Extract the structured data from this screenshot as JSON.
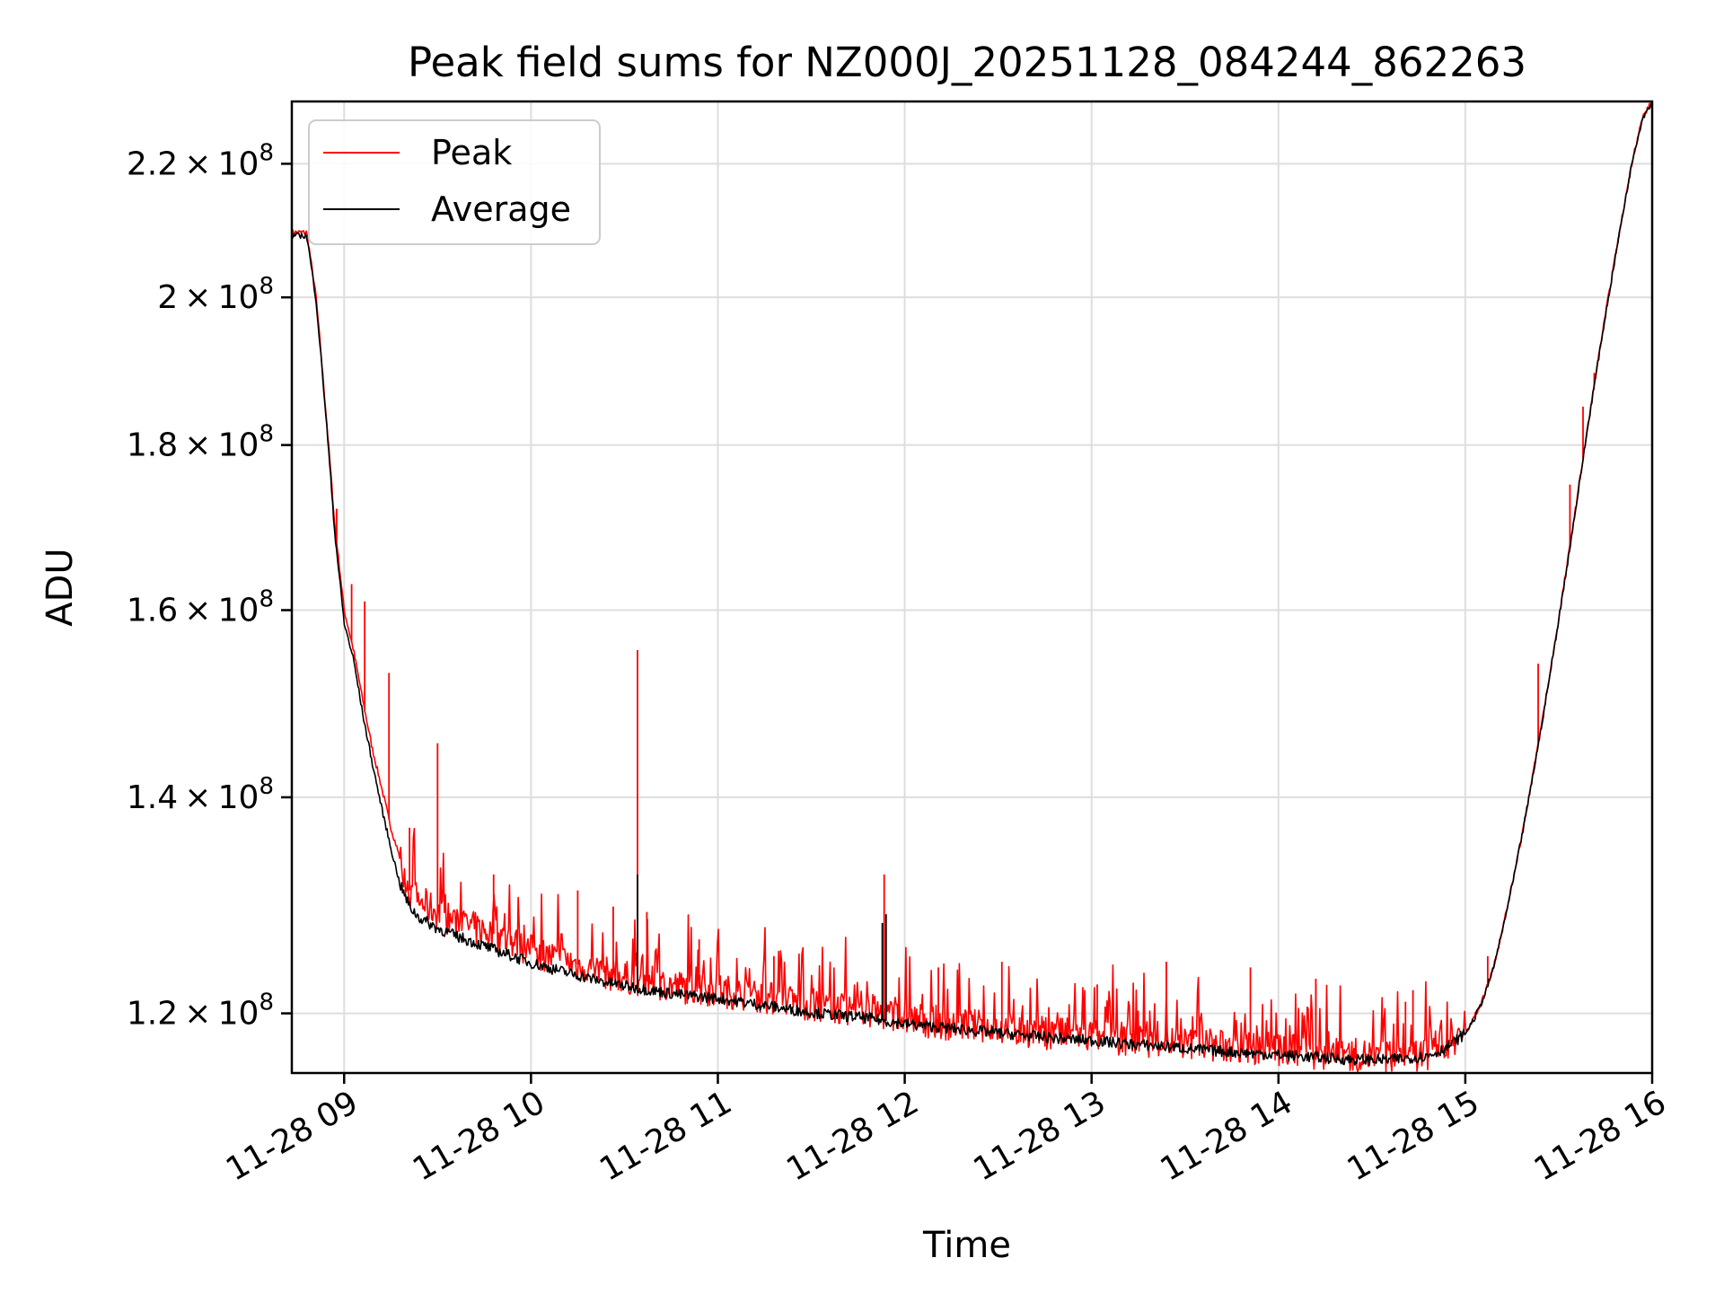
{
  "chart_data": {
    "type": "line",
    "title": "Peak field sums for NZ000J_20251128_084244_862263",
    "xlabel": "Time",
    "ylabel": "ADU",
    "yscale": "log",
    "ylim": [
      115000000,
      230000000
    ],
    "xlim": [
      8.72,
      16.0
    ],
    "grid": true,
    "legend_position": "top-left",
    "x_ticks": [
      {
        "value": 9,
        "label": "11-28 09"
      },
      {
        "value": 10,
        "label": "11-28 10"
      },
      {
        "value": 11,
        "label": "11-28 11"
      },
      {
        "value": 12,
        "label": "11-28 12"
      },
      {
        "value": 13,
        "label": "11-28 13"
      },
      {
        "value": 14,
        "label": "11-28 14"
      },
      {
        "value": 15,
        "label": "11-28 15"
      },
      {
        "value": 16,
        "label": "11-28 16"
      }
    ],
    "y_ticks": [
      {
        "value": 120000000,
        "mantissa": "1.2",
        "base": "10",
        "exp": "8"
      },
      {
        "value": 140000000,
        "mantissa": "1.4",
        "base": "10",
        "exp": "8"
      },
      {
        "value": 160000000,
        "mantissa": "1.6",
        "base": "10",
        "exp": "8"
      },
      {
        "value": 180000000,
        "mantissa": "1.8",
        "base": "10",
        "exp": "8"
      },
      {
        "value": 200000000,
        "mantissa": "2",
        "base": "10",
        "exp": "8"
      },
      {
        "value": 220000000,
        "mantissa": "2.2",
        "base": "10",
        "exp": "8"
      }
    ],
    "x_units": "hours (2025-11-28, local time)",
    "series": [
      {
        "name": "Peak",
        "color": "#ff0000",
        "x": [
          8.72,
          8.8,
          8.85,
          8.9,
          8.95,
          9.0,
          9.05,
          9.1,
          9.15,
          9.2,
          9.25,
          9.3,
          9.35,
          9.4,
          9.5,
          9.6,
          9.8,
          10.0,
          10.2,
          10.4,
          10.6,
          10.8,
          11.0,
          11.2,
          11.4,
          11.6,
          11.8,
          12.0,
          12.2,
          12.4,
          12.6,
          12.8,
          13.0,
          13.2,
          13.4,
          13.6,
          13.8,
          14.0,
          14.2,
          14.4,
          14.6,
          14.8,
          14.9,
          15.0,
          15.05,
          15.1,
          15.15,
          15.2,
          15.25,
          15.3,
          15.35,
          15.4,
          15.45,
          15.5,
          15.55,
          15.6,
          15.65,
          15.7,
          15.75,
          15.8,
          15.85,
          15.9,
          15.95,
          16.0
        ],
        "y": [
          209500000,
          209500000,
          200000000,
          185000000,
          170000000,
          160000000,
          155500000,
          150000000,
          145000000,
          141000000,
          137000000,
          134000000,
          131000000,
          130000000,
          129000000,
          128000000,
          127000000,
          125500000,
          124500000,
          123500000,
          122800000,
          122300000,
          122000000,
          121500000,
          121000000,
          120500000,
          120200000,
          119600000,
          119200000,
          118900000,
          118600000,
          118300000,
          118100000,
          117800000,
          117600000,
          117300000,
          117100000,
          116900000,
          116700000,
          116500000,
          116400000,
          116600000,
          117200000,
          118400000,
          119700000,
          121500000,
          124000000,
          127500000,
          131500000,
          136000000,
          141000000,
          146500000,
          152500000,
          159000000,
          166000000,
          173500000,
          181500000,
          189500000,
          197500000,
          205500000,
          213500000,
          221500000,
          227500000,
          230000000
        ],
        "spikes": [
          {
            "x": 8.96,
            "y": 172000000
          },
          {
            "x": 9.04,
            "y": 163000000
          },
          {
            "x": 9.11,
            "y": 161000000
          },
          {
            "x": 9.24,
            "y": 153000000
          },
          {
            "x": 9.5,
            "y": 145500000
          },
          {
            "x": 9.35,
            "y": 137000000
          },
          {
            "x": 9.8,
            "y": 132500000
          },
          {
            "x": 10.25,
            "y": 131000000
          },
          {
            "x": 10.44,
            "y": 129500000
          },
          {
            "x": 10.57,
            "y": 155500000
          },
          {
            "x": 10.62,
            "y": 129000000
          },
          {
            "x": 10.9,
            "y": 126500000
          },
          {
            "x": 11.3,
            "y": 125000000
          },
          {
            "x": 11.89,
            "y": 132500000
          },
          {
            "x": 12.18,
            "y": 124000000
          },
          {
            "x": 12.52,
            "y": 124500000
          },
          {
            "x": 13.03,
            "y": 122500000
          },
          {
            "x": 13.4,
            "y": 124500000
          },
          {
            "x": 13.85,
            "y": 124000000
          },
          {
            "x": 14.2,
            "y": 123000000
          },
          {
            "x": 14.2,
            "y": 122500000
          },
          {
            "x": 14.68,
            "y": 121000000
          },
          {
            "x": 14.72,
            "y": 122000000
          },
          {
            "x": 15.12,
            "y": 125000000
          },
          {
            "x": 15.39,
            "y": 154000000
          },
          {
            "x": 15.56,
            "y": 175000000
          },
          {
            "x": 15.63,
            "y": 185000000
          },
          {
            "x": 15.69,
            "y": 189500000
          }
        ]
      },
      {
        "name": "Average",
        "color": "#000000",
        "x": [
          8.72,
          8.8,
          8.85,
          8.9,
          8.95,
          9.0,
          9.05,
          9.1,
          9.15,
          9.2,
          9.25,
          9.3,
          9.35,
          9.4,
          9.5,
          9.6,
          9.8,
          10.0,
          10.2,
          10.4,
          10.6,
          10.8,
          11.0,
          11.2,
          11.4,
          11.6,
          11.8,
          12.0,
          12.2,
          12.4,
          12.6,
          12.8,
          13.0,
          13.2,
          13.4,
          13.6,
          13.8,
          14.0,
          14.2,
          14.4,
          14.6,
          14.8,
          14.9,
          15.0,
          15.05,
          15.1,
          15.15,
          15.2,
          15.25,
          15.3,
          15.35,
          15.4,
          15.45,
          15.5,
          15.55,
          15.6,
          15.65,
          15.7,
          15.75,
          15.8,
          15.85,
          15.9,
          15.95,
          16.0
        ],
        "y": [
          209000000,
          209000000,
          199500000,
          184500000,
          169000000,
          158500000,
          154500000,
          148500000,
          143500000,
          139000000,
          135000000,
          131500000,
          129500000,
          128500000,
          127500000,
          126800000,
          125600000,
          124400000,
          123500000,
          122700000,
          122100000,
          121600000,
          121300000,
          120800000,
          120300000,
          119900000,
          119600000,
          119100000,
          118800000,
          118500000,
          118200000,
          117900000,
          117700000,
          117400000,
          117200000,
          116900000,
          116700000,
          116500000,
          116300000,
          116100000,
          116100000,
          116400000,
          117100000,
          118300000,
          119600000,
          121400000,
          123900000,
          127400000,
          131400000,
          135900000,
          140900000,
          146400000,
          152400000,
          158900000,
          165900000,
          173400000,
          181400000,
          189400000,
          197400000,
          205400000,
          213400000,
          221400000,
          227400000,
          230000000
        ],
        "spikes": [
          {
            "x": 10.57,
            "y": 132500000
          },
          {
            "x": 11.88,
            "y": 128000000
          },
          {
            "x": 11.9,
            "y": 128800000
          }
        ]
      }
    ]
  }
}
